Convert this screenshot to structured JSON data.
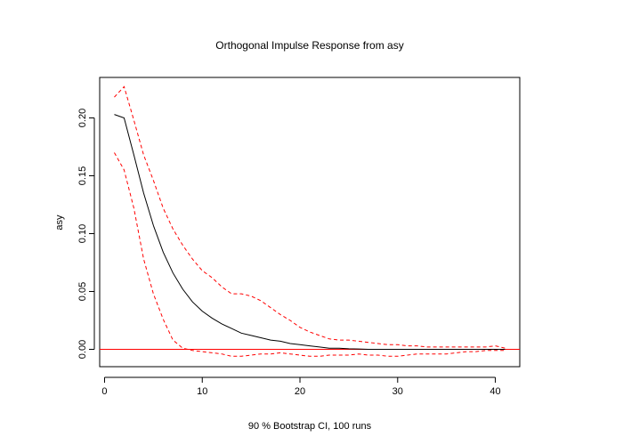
{
  "chart_data": {
    "type": "line",
    "title": "Orthogonal Impulse Response from asy",
    "ylabel": "asy",
    "xlabel": "90 % Bootstrap CI,  100 runs",
    "xlim": [
      -0.5,
      42.5
    ],
    "ylim": [
      -0.015,
      0.235
    ],
    "x_ticks": [
      0,
      10,
      20,
      30,
      40
    ],
    "x_tick_labels": [
      "0",
      "10",
      "20",
      "30",
      "40"
    ],
    "y_ticks": [
      0.0,
      0.05,
      0.1,
      0.15,
      0.2
    ],
    "y_tick_labels": [
      "0.00",
      "0.05",
      "0.10",
      "0.15",
      "0.20"
    ],
    "grid": false,
    "colors": {
      "response": "#000000",
      "ci": "#ff0000",
      "zero_line": "#ff0000"
    },
    "x": [
      1,
      2,
      3,
      4,
      5,
      6,
      7,
      8,
      9,
      10,
      11,
      12,
      13,
      14,
      15,
      16,
      17,
      18,
      19,
      20,
      21,
      22,
      23,
      24,
      25,
      26,
      27,
      28,
      29,
      30,
      31,
      32,
      33,
      34,
      35,
      36,
      37,
      38,
      39,
      40,
      41
    ],
    "series": [
      {
        "style": "solid",
        "values": [
          0.203,
          0.2,
          0.168,
          0.135,
          0.107,
          0.084,
          0.066,
          0.052,
          0.041,
          0.033,
          0.027,
          0.022,
          0.018,
          0.014,
          0.012,
          0.01,
          0.008,
          0.007,
          0.005,
          0.004,
          0.003,
          0.002,
          0.001,
          0.001,
          0.0005,
          0.0003,
          0.0,
          0.0,
          0.0,
          0.0,
          0.0,
          0.0,
          0.0,
          0.0,
          0.0,
          0.0,
          0.0,
          0.0,
          0.0,
          0.0,
          0.0
        ]
      },
      {
        "style": "dashed",
        "values": [
          0.218,
          0.227,
          0.198,
          0.168,
          0.146,
          0.122,
          0.104,
          0.09,
          0.078,
          0.068,
          0.062,
          0.054,
          0.048,
          0.048,
          0.046,
          0.042,
          0.036,
          0.03,
          0.025,
          0.019,
          0.015,
          0.012,
          0.009,
          0.008,
          0.008,
          0.007,
          0.006,
          0.005,
          0.004,
          0.004,
          0.003,
          0.003,
          0.002,
          0.002,
          0.002,
          0.002,
          0.002,
          0.002,
          0.002,
          0.003,
          0.001
        ]
      },
      {
        "style": "dashed",
        "values": [
          0.17,
          0.155,
          0.122,
          0.078,
          0.048,
          0.026,
          0.008,
          0.001,
          -0.001,
          -0.002,
          -0.003,
          -0.004,
          -0.006,
          -0.006,
          -0.005,
          -0.004,
          -0.004,
          -0.003,
          -0.004,
          -0.005,
          -0.006,
          -0.006,
          -0.005,
          -0.005,
          -0.005,
          -0.004,
          -0.005,
          -0.005,
          -0.006,
          -0.006,
          -0.005,
          -0.004,
          -0.004,
          -0.004,
          -0.004,
          -0.003,
          -0.002,
          -0.002,
          -0.001,
          -0.001,
          -0.001
        ]
      }
    ]
  }
}
